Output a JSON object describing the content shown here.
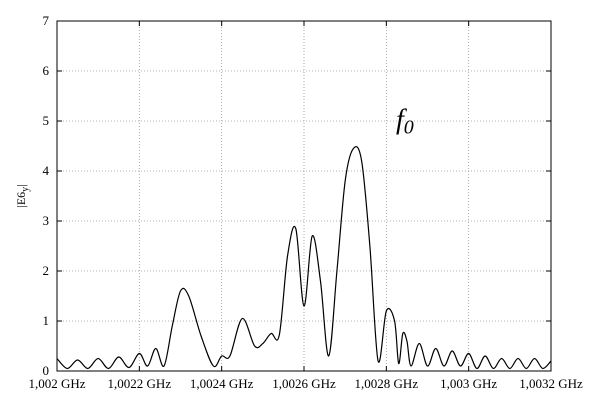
{
  "chart_data": {
    "type": "line",
    "title": "",
    "xlabel": "",
    "ylabel": "|E6",
    "ylabel_sub": "y",
    "ylabel_end": "|",
    "xlim": [
      1.002,
      1.0032
    ],
    "ylim": [
      0,
      7
    ],
    "grid": true,
    "x_ticks": [
      1.002,
      1.0022,
      1.0024,
      1.0026,
      1.0028,
      1.003,
      1.0032
    ],
    "x_tick_labels": [
      "1,002 GHz",
      "1,0022 GHz",
      "1,0024 GHz",
      "1,0026 GHz",
      "1,0028 GHz",
      "1,003 GHz",
      "1,0032 GHz"
    ],
    "y_ticks": [
      0,
      1,
      2,
      3,
      4,
      5,
      6,
      7
    ],
    "y_tick_labels": [
      "0",
      "1",
      "2",
      "3",
      "4",
      "5",
      "6",
      "7"
    ],
    "annotation": {
      "text": "f",
      "sub": "0",
      "x": 1.002845,
      "y": 4.85
    },
    "series": [
      {
        "x": [
          1.002,
          1.002025,
          1.00205,
          1.002075,
          1.0021,
          1.002125,
          1.00215,
          1.002175,
          1.0022,
          1.00222,
          1.00224,
          1.00226,
          1.00228,
          1.0023,
          1.00232,
          1.00235,
          1.00238,
          1.0024,
          1.00242,
          1.00245,
          1.00248,
          1.0025,
          1.00252,
          1.00254,
          1.00256,
          1.00258,
          1.0026,
          1.00262,
          1.00264,
          1.00266,
          1.00268,
          1.0027,
          1.00272,
          1.00274,
          1.00276,
          1.00278,
          1.0028,
          1.00282,
          1.00283,
          1.00284,
          1.00285,
          1.00286,
          1.00288,
          1.0029,
          1.00292,
          1.00294,
          1.00296,
          1.00298,
          1.003,
          1.00302,
          1.00304,
          1.00306,
          1.00308,
          1.0031,
          1.00312,
          1.00314,
          1.00316,
          1.00318,
          1.0032
        ],
        "y": [
          0.25,
          0.05,
          0.22,
          0.05,
          0.25,
          0.05,
          0.28,
          0.07,
          0.35,
          0.1,
          0.45,
          0.1,
          0.9,
          1.6,
          1.5,
          0.7,
          0.1,
          0.3,
          0.3,
          1.05,
          0.5,
          0.55,
          0.75,
          0.72,
          2.3,
          2.85,
          1.3,
          2.7,
          1.8,
          0.3,
          2.0,
          3.8,
          4.45,
          4.2,
          2.5,
          0.2,
          1.2,
          1.0,
          0.15,
          0.75,
          0.6,
          0.1,
          0.55,
          0.1,
          0.45,
          0.1,
          0.4,
          0.1,
          0.35,
          0.05,
          0.3,
          0.05,
          0.25,
          0.05,
          0.25,
          0.05,
          0.25,
          0.05,
          0.2
        ]
      }
    ]
  }
}
